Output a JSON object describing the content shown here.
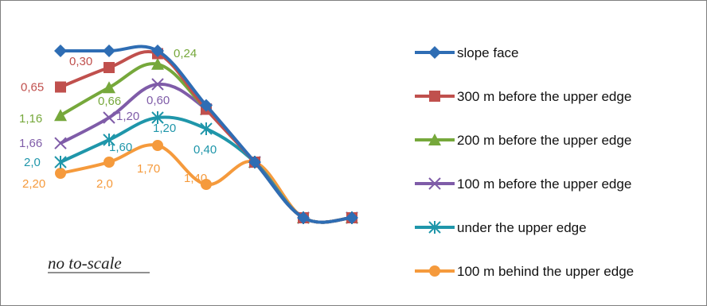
{
  "chart_data": {
    "type": "line",
    "x": [
      1,
      2,
      3,
      4,
      5,
      6,
      7
    ],
    "y_direction": "values plotted downward (profile, larger values lower)",
    "series": [
      {
        "name": "slope face",
        "color": "#2e6db4",
        "marker": "diamond",
        "values": [
          0.0,
          0.0,
          0.0,
          0.98,
          2.0,
          3.0,
          3.0
        ]
      },
      {
        "name": "300 m before the upper edge",
        "color": "#c0504d",
        "marker": "square",
        "values": [
          0.65,
          0.3,
          0.05,
          1.05,
          2.0,
          3.0,
          3.0
        ]
      },
      {
        "name": "200 m before the upper edge",
        "color": "#76a83b",
        "marker": "triangle",
        "values": [
          1.16,
          0.66,
          0.24,
          1.05,
          2.0,
          3.0,
          3.0
        ]
      },
      {
        "name": "100 m before the upper edge",
        "color": "#7f5ca8",
        "marker": "x",
        "values": [
          1.66,
          1.2,
          0.6,
          1.05,
          2.0,
          3.0,
          3.0
        ]
      },
      {
        "name": "under the upper edge",
        "color": "#1f96aa",
        "marker": "asterisk",
        "values": [
          2.0,
          1.6,
          1.2,
          1.4,
          2.0,
          3.0,
          3.0
        ]
      },
      {
        "name": "100 m behind the upper edge",
        "color": "#f59a3c",
        "marker": "circle",
        "values": [
          2.2,
          2.0,
          1.7,
          2.4,
          2.0,
          3.0,
          3.0
        ]
      }
    ],
    "data_labels": [
      {
        "series": 1,
        "point": 0,
        "text": "0,65"
      },
      {
        "series": 1,
        "point": 1,
        "text": "0,30"
      },
      {
        "series": 2,
        "point": 0,
        "text": "1,16"
      },
      {
        "series": 2,
        "point": 1,
        "text": "0,66"
      },
      {
        "series": 2,
        "point": 2,
        "text": "0,24"
      },
      {
        "series": 3,
        "point": 0,
        "text": "1,66"
      },
      {
        "series": 3,
        "point": 1,
        "text": "1,20"
      },
      {
        "series": 3,
        "point": 2,
        "text": "0,60"
      },
      {
        "series": 4,
        "point": 0,
        "text": "2,0"
      },
      {
        "series": 4,
        "point": 1,
        "text": "1,60"
      },
      {
        "series": 4,
        "point": 2,
        "text": "1,20"
      },
      {
        "series": 4,
        "point": 3,
        "text": "0,40"
      },
      {
        "series": 5,
        "point": 0,
        "text": "2,20"
      },
      {
        "series": 5,
        "point": 1,
        "text": "2,0"
      },
      {
        "series": 5,
        "point": 2,
        "text": "1,70"
      },
      {
        "series": 5,
        "point": 3,
        "text": "1,40"
      }
    ],
    "legend_position": "right",
    "grid": false,
    "annotation": "no to-scale"
  }
}
